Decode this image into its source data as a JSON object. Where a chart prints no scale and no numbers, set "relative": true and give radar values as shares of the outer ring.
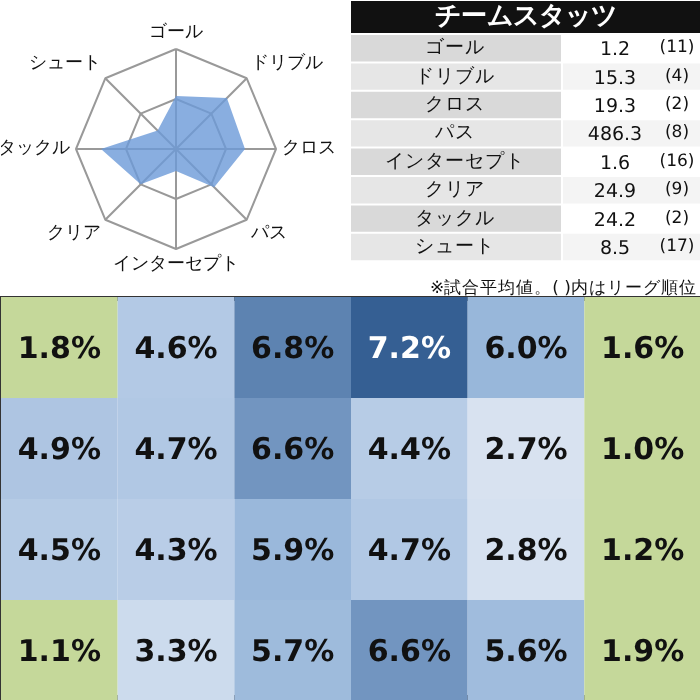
{
  "chart_data": [
    {
      "type": "radar",
      "relative": true,
      "grid": true,
      "categories": [
        "ゴール",
        "ドリブル",
        "クロス",
        "パス",
        "インターセプト",
        "クリア",
        "タックル",
        "シュート"
      ],
      "series": [
        {
          "color": "#6b9ad8",
          "values": [
            0.53,
            0.72,
            0.69,
            0.54,
            0.22,
            0.5,
            0.75,
            0.26
          ]
        }
      ]
    },
    {
      "type": "other",
      "title": "チームスタッツ",
      "data_labels": true,
      "categories": [
        "ゴール",
        "ドリブル",
        "クロス",
        "パス",
        "インターセプト",
        "クリア",
        "タックル",
        "シュート"
      ],
      "values": [
        1.2,
        15.3,
        19.3,
        486.3,
        1.6,
        24.9,
        24.2,
        8.5
      ],
      "y2_categories": [
        "(11)",
        "(4)",
        "(2)",
        "(8)",
        "(16)",
        "(9)",
        "(2)",
        "(17)"
      ],
      "annotations": [
        "※試合平均値。( )内はリーグ順位"
      ]
    },
    {
      "type": "heatmap",
      "categories": [
        null,
        null,
        null,
        null,
        null,
        null
      ],
      "y_categories": [
        null,
        null,
        null,
        null
      ],
      "cells": [
        [
          1.8,
          4.6,
          6.8,
          7.2,
          6.0,
          1.6
        ],
        [
          4.9,
          4.7,
          6.6,
          4.4,
          2.7,
          1.0
        ],
        [
          4.5,
          4.3,
          5.9,
          4.7,
          2.8,
          1.2
        ],
        [
          1.1,
          3.3,
          5.7,
          6.6,
          5.6,
          1.9
        ]
      ],
      "cell_labels": [
        [
          "1.8%",
          "4.6%",
          "6.8%",
          "7.2%",
          "6.0%",
          "1.6%"
        ],
        [
          "4.9%",
          "4.7%",
          "6.6%",
          "4.4%",
          "2.7%",
          "1.0%"
        ],
        [
          "4.5%",
          "4.3%",
          "5.9%",
          "4.7%",
          "2.8%",
          "1.2%"
        ],
        [
          "1.1%",
          "3.3%",
          "5.7%",
          "6.6%",
          "5.6%",
          "1.9%"
        ]
      ]
    }
  ]
}
